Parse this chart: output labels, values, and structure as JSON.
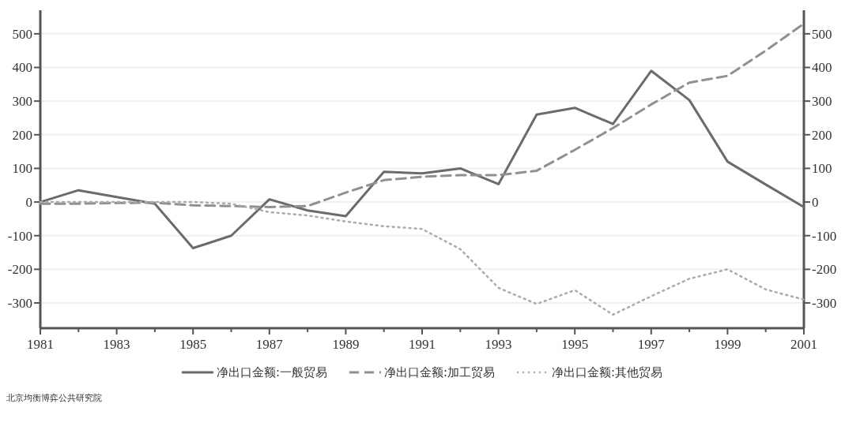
{
  "chart_data": {
    "type": "line",
    "x": [
      1981,
      1982,
      1983,
      1984,
      1985,
      1986,
      1987,
      1988,
      1989,
      1990,
      1991,
      1992,
      1993,
      1994,
      1995,
      1996,
      1997,
      1998,
      1999,
      2000,
      2001
    ],
    "xlim": [
      1981,
      2001
    ],
    "xticks": [
      1981,
      {
        "value": 1982,
        "label": null
      },
      1983,
      {
        "value": 1984,
        "label": null
      },
      1985,
      {
        "value": 1986,
        "label": null
      },
      1987,
      {
        "value": 1988,
        "label": null
      },
      1989,
      {
        "value": 1990,
        "label": null
      },
      1991,
      {
        "value": 1992,
        "label": null
      },
      1993,
      {
        "value": 1994,
        "label": null
      },
      1995,
      {
        "value": 1996,
        "label": null
      },
      1997,
      {
        "value": 1998,
        "label": null
      },
      1999,
      {
        "value": 2000,
        "label": null
      },
      2001
    ],
    "ylim": [
      -375,
      570
    ],
    "yticks": [
      -300,
      -200,
      -100,
      0,
      100,
      200,
      300,
      400,
      500
    ],
    "y2lim": [
      -375,
      570
    ],
    "y2ticks": [
      -300,
      -200,
      -100,
      0,
      100,
      200,
      300,
      400,
      500
    ],
    "grid": "y",
    "legend": "bottom",
    "series": [
      {
        "name": "净出口金额:一般贸易",
        "color": "#6b6b6b",
        "line_style": "solid",
        "values": [
          0,
          35,
          15,
          -5,
          -137,
          -100,
          8,
          -25,
          -42,
          90,
          85,
          100,
          53,
          260,
          280,
          232,
          390,
          303,
          120,
          52,
          -15
        ]
      },
      {
        "name": "净出口金额:加工贸易",
        "color": "#909090",
        "line_style": "dashed",
        "values": [
          -5,
          -5,
          -3,
          -2,
          -10,
          -12,
          -15,
          -12,
          28,
          65,
          75,
          80,
          80,
          93,
          155,
          220,
          290,
          355,
          375,
          450,
          530
        ]
      },
      {
        "name": "净出口金额:其他贸易",
        "color": "#ababab",
        "line_style": "dotted",
        "values": [
          0,
          0,
          0,
          0,
          0,
          -5,
          -30,
          -40,
          -58,
          -72,
          -80,
          -140,
          -255,
          -303,
          -262,
          -335,
          -280,
          -228,
          -200,
          -260,
          -290
        ]
      }
    ],
    "annotations": [
      "北京均衡博弈公共研究院"
    ]
  }
}
